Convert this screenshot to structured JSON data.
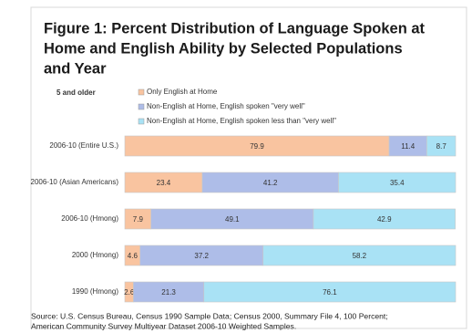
{
  "chart_data": {
    "type": "bar",
    "orientation": "horizontal",
    "stacked": true,
    "title": [
      "Figure 1: Percent Distribution of Language Spoken at",
      "Home and English Ability by Selected Populations",
      "and Year"
    ],
    "subtitle": "5 and older",
    "categories": [
      "2006-10 (Entire U.S.)",
      "2006-10 (Asian Americans)",
      "2006-10 (Hmong)",
      "2000 (Hmong)",
      "1990 (Hmong)"
    ],
    "series": [
      {
        "name": "Only English at Home",
        "color": "#f9c4a0",
        "values": [
          79.9,
          23.4,
          7.9,
          4.6,
          2.6
        ]
      },
      {
        "name": "Non-English at Home, English spoken \"very well\"",
        "color": "#aebde8",
        "values": [
          11.4,
          41.2,
          49.1,
          37.2,
          21.3
        ]
      },
      {
        "name": "Non-English at Home, English spoken less than \"very well\"",
        "color": "#a9e2f5",
        "values": [
          8.7,
          35.4,
          42.9,
          58.2,
          76.1
        ]
      }
    ],
    "xlim": [
      0,
      100
    ],
    "source": [
      "Source: U.S. Census Bureau, Census 1990 Sample Data; Census 2000,  Summary File 4, 100 Percent;",
      "American Community Survey Multiyear Dataset 2006-10 Weighted Samples."
    ]
  }
}
